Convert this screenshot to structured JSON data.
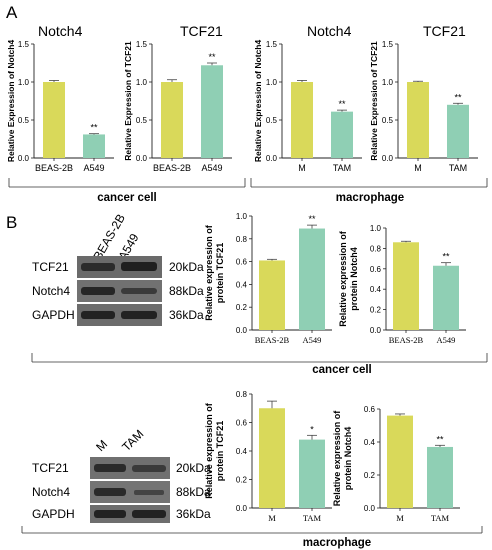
{
  "panel_labels": {
    "a": "A",
    "b": "B"
  },
  "group_labels": {
    "a_cancer": "cancer cell",
    "a_macro": "macrophage",
    "b_cancer": "cancer cell",
    "b_macro": "macrophage"
  },
  "colors": {
    "yellow": "#d9d95a",
    "teal": "#8fcfb4"
  },
  "blots": {
    "top": {
      "lane_labels": [
        "BEAS-2B",
        "A549"
      ],
      "row_labels": [
        "TCF21",
        "Notch4",
        "GAPDH"
      ],
      "sizes": [
        "20kDa",
        "88kDa",
        "36kDa"
      ]
    },
    "bottom": {
      "lane_labels": [
        "M",
        "TAM"
      ],
      "row_labels": [
        "TCF21",
        "Notch4",
        "GAPDH"
      ],
      "sizes": [
        "20kDa",
        "88kDa",
        "36kDa"
      ]
    }
  },
  "chart_data": [
    {
      "id": "a1",
      "type": "bar",
      "title": "Notch4",
      "ylabel": "Relative Expression of Notch4",
      "categories": [
        "BEAS-2B",
        "A549"
      ],
      "values": [
        1.0,
        0.31
      ],
      "errors": [
        0.02,
        0.01
      ],
      "significance": [
        "",
        "**"
      ],
      "ylim": [
        0,
        1.5
      ],
      "yticks": [
        "0.0",
        "0.5",
        "1.0",
        "1.5"
      ]
    },
    {
      "id": "a2",
      "type": "bar",
      "title": "TCF21",
      "ylabel": "Relative Expression of TCF21",
      "categories": [
        "BEAS-2B",
        "A549"
      ],
      "values": [
        1.0,
        1.22
      ],
      "errors": [
        0.03,
        0.03
      ],
      "significance": [
        "",
        "**"
      ],
      "ylim": [
        0,
        1.5
      ],
      "yticks": [
        "0.0",
        "0.5",
        "1.0",
        "1.5"
      ]
    },
    {
      "id": "a3",
      "type": "bar",
      "title": "Notch4",
      "ylabel": "Relative Expression of Notch4",
      "categories": [
        "M",
        "TAM"
      ],
      "values": [
        1.0,
        0.61
      ],
      "errors": [
        0.02,
        0.02
      ],
      "significance": [
        "",
        "**"
      ],
      "ylim": [
        0,
        1.5
      ],
      "yticks": [
        "0.0",
        "0.5",
        "1.0",
        "1.5"
      ]
    },
    {
      "id": "a4",
      "type": "bar",
      "title": "TCF21",
      "ylabel": "Relative Expression of TCF21",
      "categories": [
        "M",
        "TAM"
      ],
      "values": [
        1.0,
        0.7
      ],
      "errors": [
        0.01,
        0.02
      ],
      "significance": [
        "",
        "**"
      ],
      "ylim": [
        0,
        1.5
      ],
      "yticks": [
        "0.0",
        "0.5",
        "1.0",
        "1.5"
      ]
    },
    {
      "id": "b1",
      "type": "bar",
      "title": "",
      "ylabel": "Relative expression of protein TCF21",
      "ylabel_lines": [
        "Relative expression of",
        "protein TCF21"
      ],
      "categories": [
        "BEAS-2B",
        "A549"
      ],
      "values": [
        0.61,
        0.89
      ],
      "errors": [
        0.01,
        0.03
      ],
      "significance": [
        "",
        "**"
      ],
      "ylim": [
        0,
        1.0
      ],
      "yticks": [
        "0.0",
        "0.2",
        "0.4",
        "0.6",
        "0.8",
        "1.0"
      ]
    },
    {
      "id": "b2",
      "type": "bar",
      "title": "",
      "ylabel": "Relative expression of protein Notch4",
      "ylabel_lines": [
        "Relative expression of",
        "protein Notch4"
      ],
      "categories": [
        "BEAS-2B",
        "A549"
      ],
      "values": [
        0.86,
        0.63
      ],
      "errors": [
        0.01,
        0.03
      ],
      "significance": [
        "",
        "**"
      ],
      "ylim": [
        0,
        1.0
      ],
      "yticks": [
        "0.0",
        "0.2",
        "0.4",
        "0.6",
        "0.8",
        "1.0"
      ]
    },
    {
      "id": "b3",
      "type": "bar",
      "title": "",
      "ylabel": "Relative expression of protein TCF21",
      "ylabel_lines": [
        "Relative expression of",
        "protein TCF21"
      ],
      "categories": [
        "M",
        "TAM"
      ],
      "values": [
        0.7,
        0.48
      ],
      "errors": [
        0.05,
        0.03
      ],
      "significance": [
        "",
        "*"
      ],
      "ylim": [
        0,
        0.8
      ],
      "yticks": [
        "0.0",
        "0.2",
        "0.4",
        "0.6",
        "0.8"
      ]
    },
    {
      "id": "b4",
      "type": "bar",
      "title": "",
      "ylabel": "Relative expression of protein Notch4",
      "ylabel_lines": [
        "Relative expression of",
        "protein Notch4"
      ],
      "categories": [
        "M",
        "TAM"
      ],
      "values": [
        0.56,
        0.37
      ],
      "errors": [
        0.01,
        0.01
      ],
      "significance": [
        "",
        "**"
      ],
      "ylim": [
        0,
        0.6
      ],
      "yticks": [
        "0.0",
        "0.2",
        "0.4",
        "0.6"
      ]
    }
  ]
}
